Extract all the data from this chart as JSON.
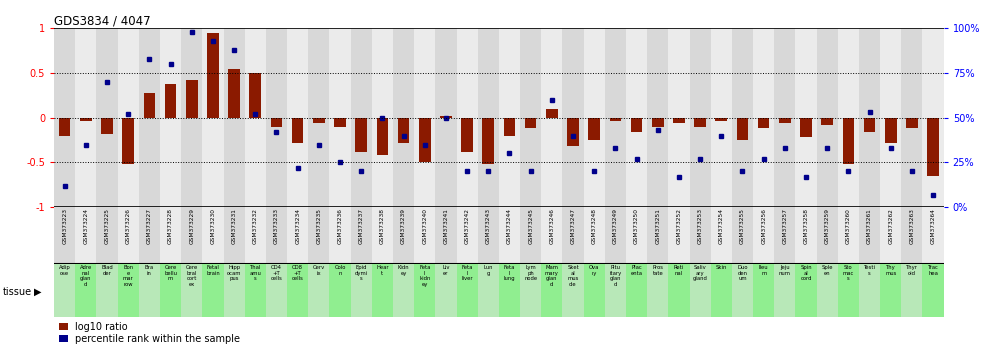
{
  "title": "GDS3834 / 4047",
  "gsm_ids": [
    "GSM373223",
    "GSM373224",
    "GSM373225",
    "GSM373226",
    "GSM373227",
    "GSM373228",
    "GSM373229",
    "GSM373230",
    "GSM373231",
    "GSM373232",
    "GSM373233",
    "GSM373234",
    "GSM373235",
    "GSM373236",
    "GSM373237",
    "GSM373238",
    "GSM373239",
    "GSM373240",
    "GSM373241",
    "GSM373242",
    "GSM373243",
    "GSM373244",
    "GSM373245",
    "GSM373246",
    "GSM373247",
    "GSM373248",
    "GSM373249",
    "GSM373250",
    "GSM373251",
    "GSM373252",
    "GSM373253",
    "GSM373254",
    "GSM373255",
    "GSM373256",
    "GSM373257",
    "GSM373258",
    "GSM373259",
    "GSM373260",
    "GSM373261",
    "GSM373262",
    "GSM373263",
    "GSM373264"
  ],
  "log10_ratio": [
    -0.2,
    -0.04,
    -0.18,
    -0.52,
    0.28,
    0.38,
    0.42,
    0.95,
    0.55,
    0.5,
    -0.1,
    -0.28,
    -0.06,
    -0.1,
    -0.38,
    -0.42,
    -0.28,
    -0.5,
    0.02,
    -0.38,
    -0.52,
    -0.2,
    -0.12,
    0.1,
    -0.32,
    -0.25,
    -0.04,
    -0.16,
    -0.1,
    -0.06,
    -0.1,
    -0.04,
    -0.25,
    -0.12,
    -0.06,
    -0.22,
    -0.08,
    -0.52,
    -0.16,
    -0.28,
    -0.12,
    -0.65
  ],
  "pct_rank": [
    0.12,
    0.35,
    0.7,
    0.52,
    0.83,
    0.8,
    0.98,
    0.93,
    0.88,
    0.52,
    0.42,
    0.22,
    0.35,
    0.25,
    0.2,
    0.5,
    0.4,
    0.35,
    0.5,
    0.2,
    0.2,
    0.3,
    0.2,
    0.6,
    0.4,
    0.2,
    0.33,
    0.27,
    0.43,
    0.17,
    0.27,
    0.4,
    0.2,
    0.27,
    0.33,
    0.17,
    0.33,
    0.2,
    0.53,
    0.33,
    0.2,
    0.07
  ],
  "tissue_labels": [
    "Adip\nose",
    "Adre\nnal\nglan\nd",
    "Blad\nder",
    "Bon\ne\nmar\nrow",
    "Bra\nin",
    "Cere\nbellu\nm",
    "Cere\nbral\ncort\nex",
    "Fetal\nbrain\n",
    "Hipp\nocam\npus",
    "Thal\namu\ns",
    "CD4\n+T\ncells",
    "CD8\n+T\ncells",
    "Cerv\nix",
    "Colo\nn",
    "Epid\ndymi\ns",
    "Hear\nt",
    "Kidn\ney",
    "Feta\nl\nkidn\ney",
    "Liv\ner",
    "Feta\nl\nliver",
    "Lun\ng",
    "Feta\nl\nlung",
    "Lym\nph\nnode",
    "Mam\nmary\nglan\nd",
    "Sket\nal\nmus\ncle",
    "Ova\nry",
    "Pitu\nitary\nglan\nd",
    "Plac\nenta",
    "Pros\ntate",
    "Reti\nnal",
    "Saliv\nary\ngland",
    "Skin",
    "Duo\nden\num",
    "Ileu\nm",
    "Jeju\nnum",
    "Spin\nal\ncord",
    "Sple\nen",
    "Sto\nmac\ns",
    "Testi\ns",
    "Thy\nmus",
    "Thyr\noid",
    "Trac\nhea"
  ],
  "bar_color": "#8B1A00",
  "dot_color": "#00008B",
  "bg_col_even": "#d8d8d8",
  "bg_col_odd": "#ebebeb",
  "tissue_bg_green": "#90EE90",
  "tissue_bg_lgray": "#c8c8c8",
  "ylim": [
    -1.0,
    1.0
  ],
  "left_ticks": [
    -1,
    -0.5,
    0,
    0.5,
    1
  ],
  "right_ticks": [
    0,
    25,
    50,
    75,
    100
  ],
  "dotted_lines": [
    -0.5,
    0.0,
    0.5
  ]
}
